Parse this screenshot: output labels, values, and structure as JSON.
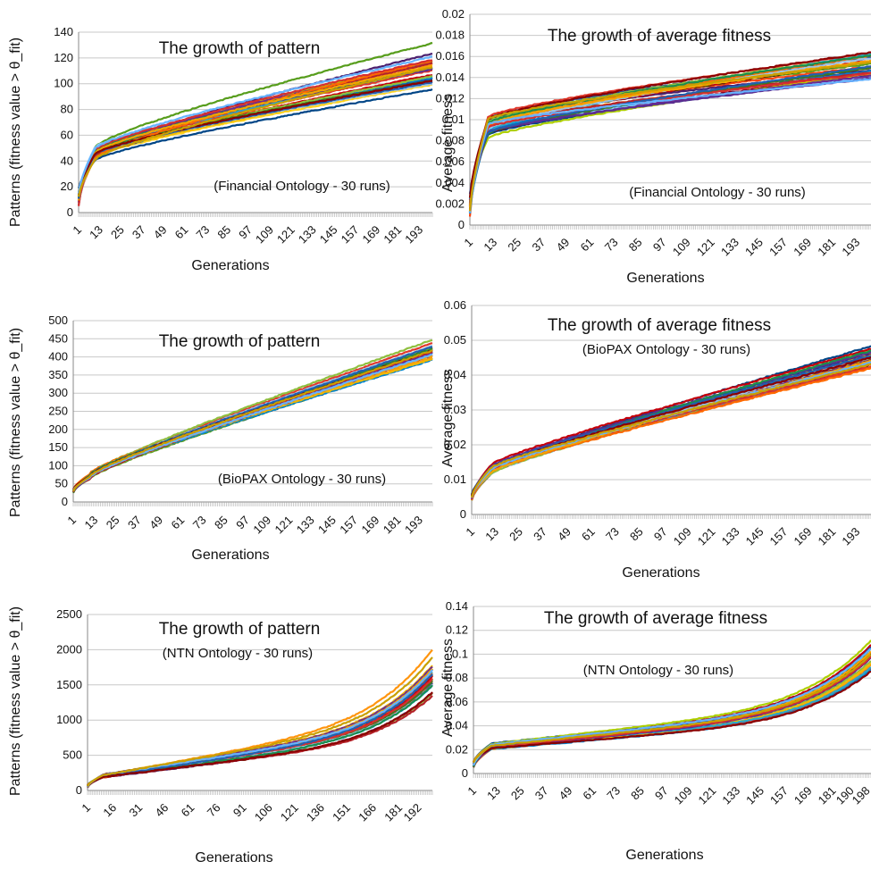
{
  "colors": [
    "#004586",
    "#ff420e",
    "#ffd320",
    "#579d1c",
    "#7e0021",
    "#83caff",
    "#314004",
    "#aecf00",
    "#4b1f6f",
    "#ff950e",
    "#c5000b",
    "#0084d1",
    "#1f4e9a",
    "#e0382b",
    "#8fbf3f",
    "#f2b800",
    "#6e2a90",
    "#2aa7c9",
    "#b5232a",
    "#3d7a1c",
    "#ff6a00",
    "#9dc3e6",
    "#5c2d91",
    "#d62f2f",
    "#1a8e4e",
    "#f4a300",
    "#2060b0",
    "#8b0000",
    "#66b2ff",
    "#c9a000"
  ],
  "charts": [
    {
      "type": "line",
      "title": "The growth of pattern",
      "subtitle": "(Financial Ontology - 30 runs)",
      "xlabel": "Generations",
      "ylabel": "Patterns (fitness value > θ_fit)",
      "yticks": [
        "0",
        "20",
        "40",
        "60",
        "80",
        "100",
        "120",
        "140"
      ],
      "ylim": [
        0,
        140
      ],
      "xticks": [
        "1",
        "13",
        "25",
        "37",
        "49",
        "61",
        "73",
        "85",
        "97",
        "109",
        "121",
        "133",
        "145",
        "157",
        "169",
        "181",
        "193"
      ],
      "series_summary": {
        "runs": 30,
        "x_range": [
          1,
          200
        ],
        "start": [
          5,
          20
        ],
        "at_10": [
          38,
          52
        ],
        "end": [
          92,
          133
        ]
      }
    },
    {
      "type": "line",
      "title": "The growth of average fitness",
      "subtitle": "(Financial Ontology - 30 runs)",
      "xlabel": "Generations",
      "ylabel": "Average fitness",
      "yticks": [
        "0",
        "0.002",
        "0.004",
        "0.006",
        "0.008",
        "0.01",
        "0.012",
        "0.014",
        "0.016",
        "0.018",
        "0.02"
      ],
      "ylim": [
        0,
        0.02
      ],
      "xticks": [
        "1",
        "13",
        "25",
        "37",
        "49",
        "61",
        "73",
        "85",
        "97",
        "109",
        "121",
        "133",
        "145",
        "157",
        "169",
        "181",
        "193"
      ],
      "series_summary": {
        "runs": 30,
        "x_range": [
          1,
          200
        ],
        "start": [
          0.0008,
          0.003
        ],
        "at_10": [
          0.008,
          0.0105
        ],
        "end": [
          0.013,
          0.0172
        ]
      }
    },
    {
      "type": "line",
      "title": "The growth of pattern",
      "subtitle": "(BioPAX Ontology - 30 runs)",
      "xlabel": "Generations",
      "ylabel": "Patterns (fitness value > θ_fit)",
      "yticks": [
        "0",
        "50",
        "100",
        "150",
        "200",
        "250",
        "300",
        "350",
        "400",
        "450",
        "500"
      ],
      "ylim": [
        0,
        500
      ],
      "xticks": [
        "1",
        "13",
        "25",
        "37",
        "49",
        "61",
        "73",
        "85",
        "97",
        "109",
        "121",
        "133",
        "145",
        "157",
        "169",
        "181",
        "193"
      ],
      "series_summary": {
        "runs": 30,
        "x_range": [
          1,
          200
        ],
        "start": [
          25,
          35
        ],
        "at_10": [
          60,
          80
        ],
        "end": [
          375,
          470
        ]
      }
    },
    {
      "type": "line",
      "title": "The growth of average fitness",
      "subtitle": "(BioPAX Ontology - 30 runs)",
      "xlabel": "Generations",
      "ylabel": "Average fitness",
      "yticks": [
        "0",
        "0.01",
        "0.02",
        "0.03",
        "0.04",
        "0.05",
        "0.06"
      ],
      "ylim": [
        0,
        0.06
      ],
      "xticks": [
        "1",
        "13",
        "25",
        "37",
        "49",
        "61",
        "73",
        "85",
        "97",
        "109",
        "121",
        "133",
        "145",
        "157",
        "169",
        "181",
        "193"
      ],
      "series_summary": {
        "runs": 30,
        "x_range": [
          1,
          200
        ],
        "start": [
          0.004,
          0.006
        ],
        "at_10": [
          0.011,
          0.014
        ],
        "end": [
          0.041,
          0.049
        ]
      }
    },
    {
      "type": "line",
      "title": "The growth of pattern",
      "subtitle": "(NTN Ontology - 30 runs)",
      "xlabel": "Generations",
      "ylabel": "Patterns (fitness value > θ_fit)",
      "yticks": [
        "0",
        "500",
        "1000",
        "1500",
        "2000",
        "2500"
      ],
      "ylim": [
        0,
        2500
      ],
      "xticks": [
        "1",
        "16",
        "31",
        "46",
        "61",
        "76",
        "91",
        "106",
        "121",
        "136",
        "151",
        "166",
        "181",
        "192"
      ],
      "series_summary": {
        "runs": 30,
        "x_range": [
          1,
          200
        ],
        "start": [
          40,
          80
        ],
        "at_10": [
          180,
          230
        ],
        "end": [
          1250,
          2130
        ]
      }
    },
    {
      "type": "line",
      "title": "The growth of average fitness",
      "subtitle": "(NTN Ontology - 30 runs)",
      "xlabel": "Generations",
      "ylabel": "Average fitness",
      "yticks": [
        "0",
        "0.02",
        "0.04",
        "0.06",
        "0.08",
        "0.1",
        "0.12",
        "0.14"
      ],
      "ylim": [
        0,
        0.14
      ],
      "xticks": [
        "1",
        "13",
        "25",
        "37",
        "49",
        "61",
        "73",
        "85",
        "97",
        "109",
        "121",
        "133",
        "145",
        "157",
        "169",
        "181",
        "190",
        "198"
      ],
      "series_summary": {
        "runs": 30,
        "x_range": [
          1,
          200
        ],
        "start": [
          0.005,
          0.01
        ],
        "at_10": [
          0.02,
          0.026
        ],
        "end": [
          0.085,
          0.12
        ]
      }
    }
  ],
  "chart_data": [
    {
      "type": "line",
      "title": "The growth of pattern",
      "subtitle": "(Financial Ontology - 30 runs)",
      "xlabel": "Generations",
      "ylabel": "Patterns (fitness value > θ_fit)",
      "ylim": [
        0,
        140
      ],
      "x": [
        1,
        200
      ],
      "series_count": 30,
      "value_range_end": [
        92,
        133
      ]
    },
    {
      "type": "line",
      "title": "The growth of average fitness",
      "subtitle": "(Financial Ontology - 30 runs)",
      "xlabel": "Generations",
      "ylabel": "Average fitness",
      "ylim": [
        0,
        0.02
      ],
      "x": [
        1,
        200
      ],
      "series_count": 30,
      "value_range_end": [
        0.013,
        0.0172
      ]
    },
    {
      "type": "line",
      "title": "The growth of pattern",
      "subtitle": "(BioPAX Ontology - 30 runs)",
      "xlabel": "Generations",
      "ylabel": "Patterns (fitness value > θ_fit)",
      "ylim": [
        0,
        500
      ],
      "x": [
        1,
        200
      ],
      "series_count": 30,
      "value_range_end": [
        375,
        470
      ]
    },
    {
      "type": "line",
      "title": "The growth of average fitness",
      "subtitle": "(BioPAX Ontology - 30 runs)",
      "xlabel": "Generations",
      "ylabel": "Average fitness",
      "ylim": [
        0,
        0.06
      ],
      "x": [
        1,
        200
      ],
      "series_count": 30,
      "value_range_end": [
        0.041,
        0.049
      ]
    },
    {
      "type": "line",
      "title": "The growth of pattern",
      "subtitle": "(NTN Ontology - 30 runs)",
      "xlabel": "Generations",
      "ylabel": "Patterns (fitness value > θ_fit)",
      "ylim": [
        0,
        2500
      ],
      "x": [
        1,
        200
      ],
      "series_count": 30,
      "value_range_end": [
        1250,
        2130
      ]
    },
    {
      "type": "line",
      "title": "The growth of average fitness",
      "subtitle": "(NTN Ontology - 30 runs)",
      "xlabel": "Generations",
      "ylabel": "Average fitness",
      "ylim": [
        0,
        0.14
      ],
      "x": [
        1,
        200
      ],
      "series_count": 30,
      "value_range_end": [
        0.085,
        0.12
      ]
    }
  ]
}
